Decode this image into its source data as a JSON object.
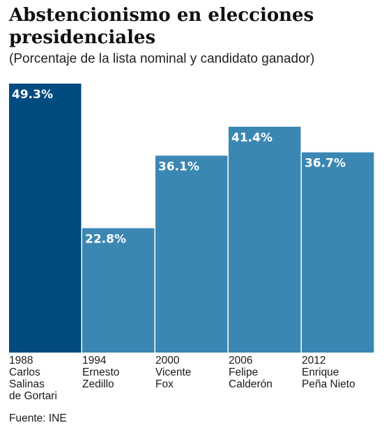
{
  "colors": {
    "bar": "#3b87b3",
    "bar_highlight": "#004b7f"
  },
  "chart_data": {
    "type": "bar",
    "title": "Abstencionismo en elecciones presidenciales",
    "subtitle": "(Porcentaje de la lista nominal y candidato ganador)",
    "categories": [
      [
        "1988",
        "Carlos",
        "Salinas",
        "de Gortari"
      ],
      [
        "1994",
        "Ernesto",
        "Zedillo"
      ],
      [
        "2000",
        "Vicente",
        "Fox"
      ],
      [
        "2006",
        "Felipe",
        "Calderón"
      ],
      [
        "2012",
        "Enrique",
        "Peña Nieto"
      ]
    ],
    "values": [
      49.3,
      22.8,
      36.1,
      41.4,
      36.7
    ],
    "value_labels": [
      "49.3%",
      "22.8%",
      "36.1%",
      "41.4%",
      "36.7%"
    ],
    "highlight_index": 0,
    "ylim": [
      0,
      50
    ],
    "grid": false,
    "legend": "none",
    "source": "Fuente: INE"
  }
}
